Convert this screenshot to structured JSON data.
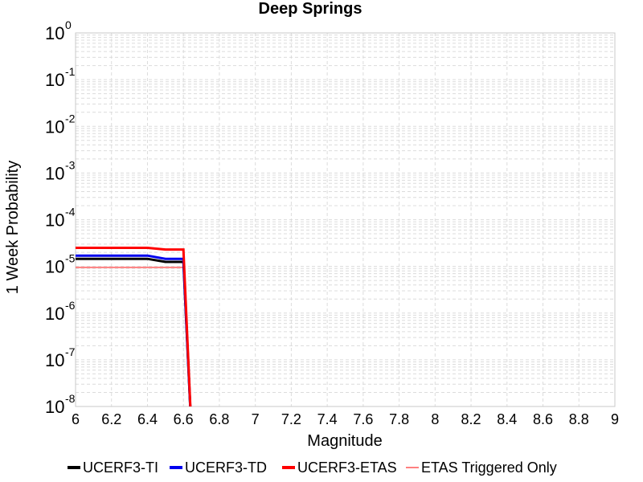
{
  "chart_data": {
    "type": "line",
    "title": "Deep Springs",
    "xlabel": "Magnitude",
    "ylabel": "1 Week Probability",
    "xlim": [
      6,
      9
    ],
    "ylim": [
      1e-08,
      1
    ],
    "yscale": "log",
    "grid": true,
    "legend_position": "bottom",
    "x_ticks": [
      "6",
      "6.2",
      "6.4",
      "6.6",
      "6.8",
      "7",
      "7.2",
      "7.4",
      "7.6",
      "7.8",
      "8",
      "8.2",
      "8.4",
      "8.6",
      "8.8",
      "9"
    ],
    "y_ticks": [
      {
        "base": "10",
        "exp": "0"
      },
      {
        "base": "10",
        "exp": "-1"
      },
      {
        "base": "10",
        "exp": "-2"
      },
      {
        "base": "10",
        "exp": "-3"
      },
      {
        "base": "10",
        "exp": "-4"
      },
      {
        "base": "10",
        "exp": "-5"
      },
      {
        "base": "10",
        "exp": "-6"
      },
      {
        "base": "10",
        "exp": "-7"
      },
      {
        "base": "10",
        "exp": "-8"
      }
    ],
    "series": [
      {
        "name": "UCERF3-TI",
        "color": "#000000",
        "width": 3,
        "x": [
          6.0,
          6.1,
          6.2,
          6.3,
          6.4,
          6.5,
          6.6,
          6.65
        ],
        "y": [
          1.45e-05,
          1.45e-05,
          1.45e-05,
          1.45e-05,
          1.45e-05,
          1.25e-05,
          1.25e-05,
          1e-09
        ]
      },
      {
        "name": "UCERF3-TD",
        "color": "#0000ee",
        "width": 3,
        "x": [
          6.0,
          6.1,
          6.2,
          6.3,
          6.4,
          6.5,
          6.6,
          6.65
        ],
        "y": [
          1.7e-05,
          1.7e-05,
          1.7e-05,
          1.7e-05,
          1.7e-05,
          1.45e-05,
          1.45e-05,
          1e-09
        ]
      },
      {
        "name": "UCERF3-ETAS",
        "color": "#ff0000",
        "width": 3,
        "x": [
          6.0,
          6.1,
          6.2,
          6.3,
          6.4,
          6.5,
          6.6,
          6.65
        ],
        "y": [
          2.5e-05,
          2.5e-05,
          2.5e-05,
          2.5e-05,
          2.5e-05,
          2.3e-05,
          2.3e-05,
          1e-09
        ]
      },
      {
        "name": "ETAS Triggered Only",
        "color": "#ff8080",
        "width": 2,
        "x": [
          6.0,
          6.1,
          6.2,
          6.3,
          6.4,
          6.5,
          6.6
        ],
        "y": [
          9.5e-06,
          9.5e-06,
          9.5e-06,
          9.5e-06,
          9.5e-06,
          9.5e-06,
          9.5e-06
        ]
      }
    ]
  }
}
